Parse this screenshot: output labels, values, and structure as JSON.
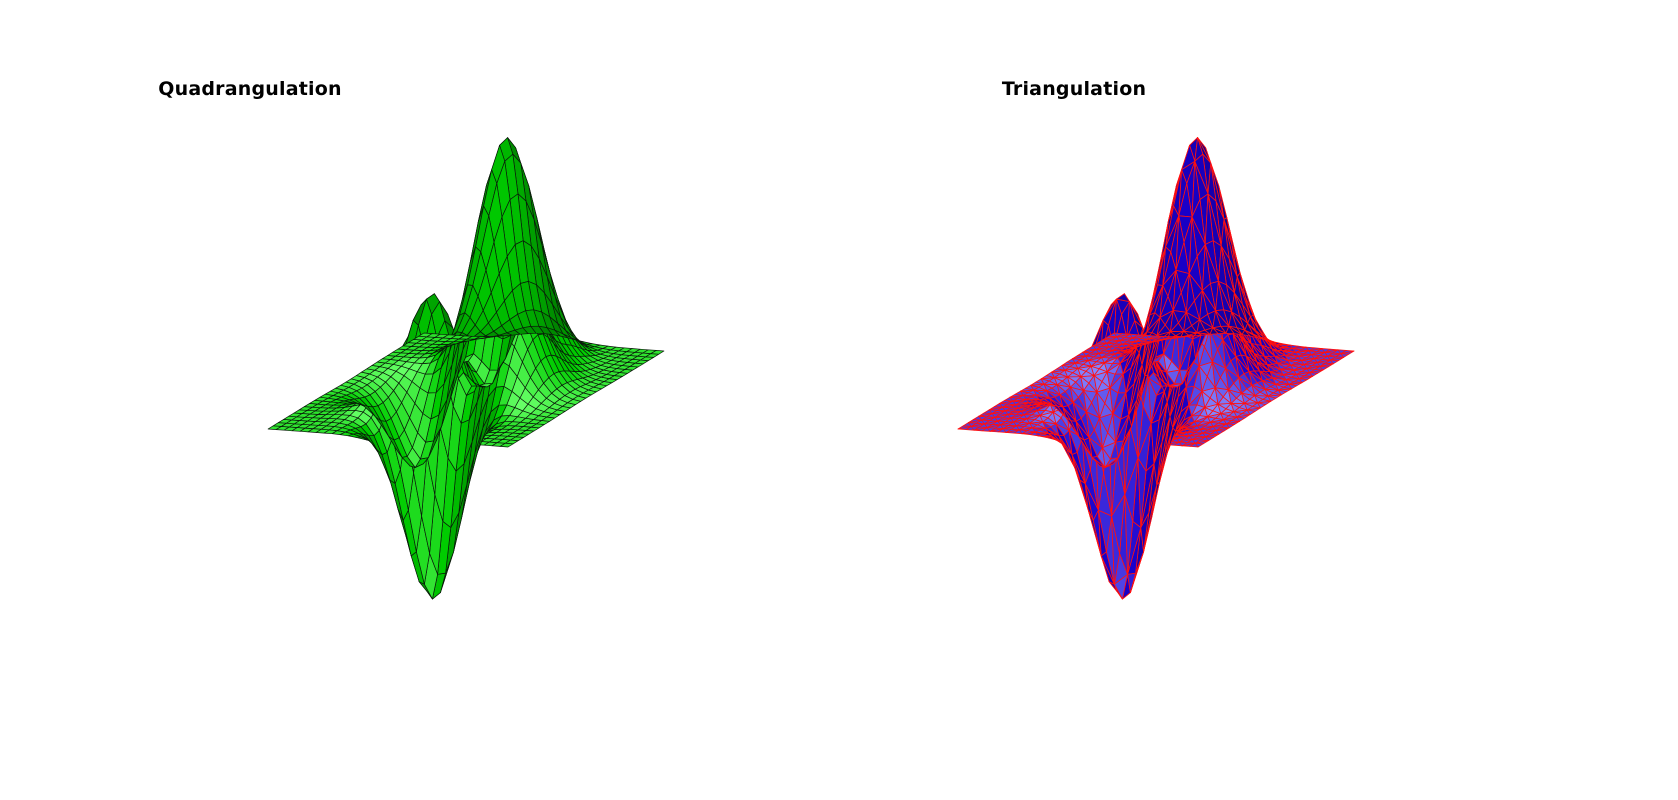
{
  "figure": {
    "panels": [
      {
        "title": "Quadrangulation",
        "face_color": "#00cc00",
        "highlight_color": "#66ff66",
        "edge_color": "#0a1a0a",
        "mesh": "quad"
      },
      {
        "title": "Triangulation",
        "face_color": "#1a00cc",
        "highlight_color": "#8888ff",
        "edge_color": "#ff1010",
        "mesh": "tri"
      }
    ]
  }
}
